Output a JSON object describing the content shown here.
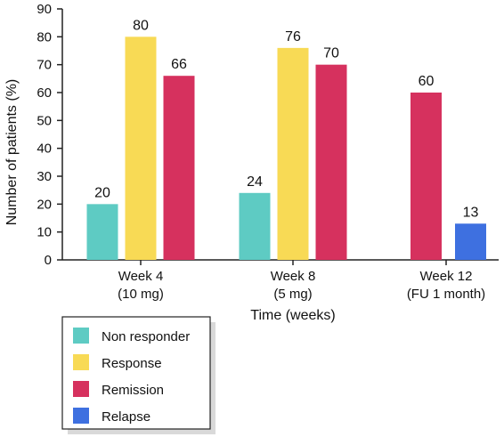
{
  "chart_data": {
    "type": "bar",
    "categories": [
      "Week 4\n(10 mg)",
      "Week 8\n(5 mg)",
      "Week 12\n(FU 1 month)"
    ],
    "series": [
      {
        "name": "Non responder",
        "color": "#5ecbc3",
        "values": [
          20,
          24,
          null
        ]
      },
      {
        "name": "Response",
        "color": "#f8da55",
        "values": [
          80,
          76,
          null
        ]
      },
      {
        "name": "Remission",
        "color": "#d6315e",
        "values": [
          66,
          70,
          60
        ]
      },
      {
        "name": "Relapse",
        "color": "#3e70e0",
        "values": [
          null,
          null,
          13
        ]
      }
    ],
    "xlabel": "Time (weeks)",
    "ylabel": "Number of patients (%)",
    "ylim": [
      0,
      90
    ],
    "yticks": [
      0,
      10,
      20,
      30,
      40,
      50,
      60,
      70,
      80,
      90
    ],
    "grid": false,
    "legend_position": "bottom-left"
  }
}
